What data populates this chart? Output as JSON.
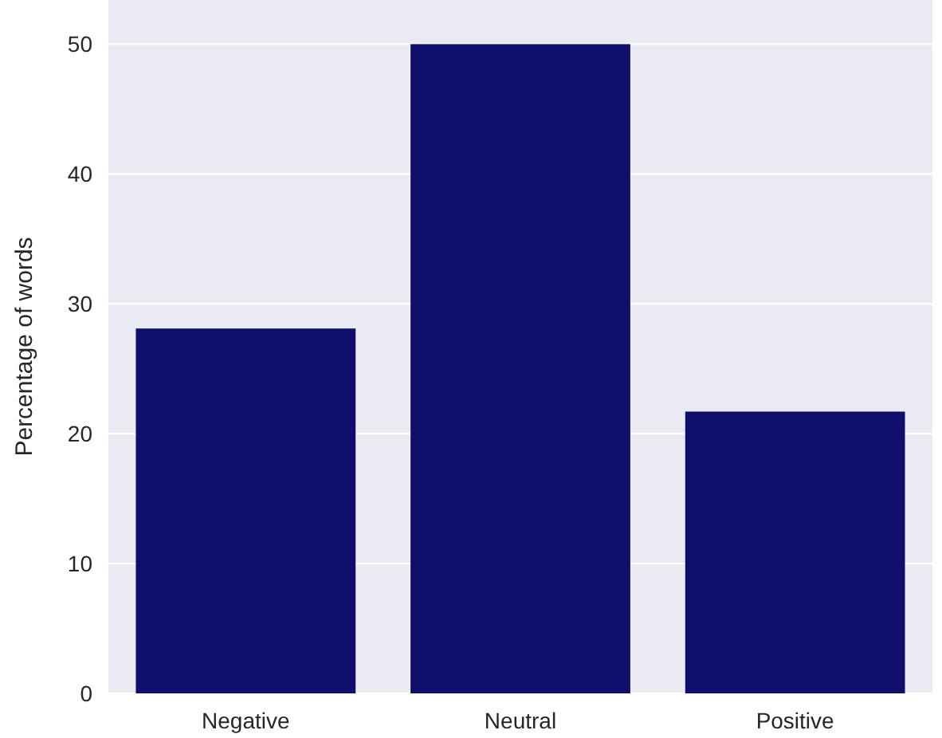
{
  "chart_data": {
    "type": "bar",
    "ylabel": "Percentage of words",
    "categories": [
      "Negative",
      "Neutral",
      "Positive"
    ],
    "values": [
      28.1,
      50,
      21.7
    ],
    "color": "#0f0f6b",
    "ylim": [
      0,
      53.4
    ],
    "yticks": [
      0,
      10,
      20,
      30,
      40,
      50
    ],
    "grid": "y"
  }
}
